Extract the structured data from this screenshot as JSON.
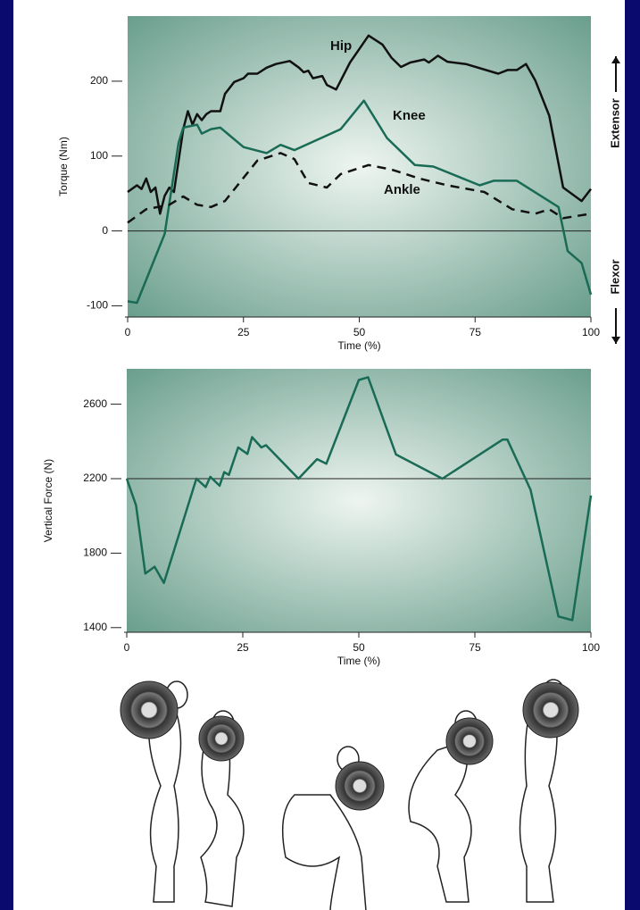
{
  "chart_data": [
    {
      "type": "line",
      "y_label": "Torque (Nm)",
      "x_label": "Time (%)",
      "xlim": [
        0,
        100
      ],
      "xticks": [
        0,
        25,
        50,
        75,
        100
      ],
      "ylim": [
        -115,
        287
      ],
      "yticks": [
        -100,
        0,
        100,
        200
      ],
      "annotations": [
        "Extensor",
        "Flexor"
      ],
      "series": [
        {
          "name": "Hip",
          "color": "#111111",
          "dashed": false,
          "x": [
            0,
            2,
            3,
            4,
            5,
            6,
            7,
            8,
            9,
            10,
            12,
            13,
            14,
            15,
            16,
            17,
            18,
            20,
            21,
            23,
            25,
            26,
            28,
            30,
            32,
            35,
            37,
            38,
            39,
            40,
            42,
            43,
            45,
            48,
            50,
            52,
            55,
            57,
            59,
            61,
            64,
            65,
            67,
            69,
            73,
            80,
            82,
            84,
            86,
            88,
            91,
            94,
            98,
            100
          ],
          "values": [
            52,
            61,
            56,
            70,
            52,
            58,
            23,
            47,
            58,
            52,
            136,
            160,
            142,
            156,
            148,
            156,
            160,
            160,
            183,
            199,
            204,
            210,
            210,
            218,
            223,
            227,
            218,
            212,
            214,
            204,
            207,
            195,
            189,
            225,
            243,
            261,
            249,
            231,
            219,
            225,
            229,
            225,
            234,
            226,
            223,
            210,
            215,
            215,
            223,
            201,
            154,
            58,
            40,
            56
          ]
        },
        {
          "name": "Knee",
          "color": "#1a6b55",
          "dashed": false,
          "x": [
            0,
            2,
            8,
            11,
            12,
            15,
            16,
            18,
            20,
            25,
            30,
            33,
            36,
            46,
            51,
            56,
            62,
            66,
            76,
            79,
            84,
            93,
            95,
            98,
            100
          ],
          "values": [
            -94,
            -96,
            -4,
            118,
            138,
            142,
            130,
            136,
            138,
            112,
            104,
            115,
            108,
            136,
            174,
            124,
            88,
            86,
            61,
            67,
            67,
            32,
            -27,
            -43,
            -85
          ]
        },
        {
          "name": "Ankle",
          "color": "#111111",
          "dashed": true,
          "x": [
            0,
            4,
            9,
            12,
            15,
            18,
            21,
            28,
            33,
            36,
            39,
            43,
            46,
            52,
            57,
            63,
            69,
            77,
            83,
            88,
            91,
            94,
            100
          ],
          "values": [
            11,
            29,
            35,
            46,
            35,
            32,
            40,
            94,
            104,
            96,
            64,
            58,
            76,
            88,
            82,
            70,
            61,
            52,
            29,
            23,
            29,
            17,
            23
          ]
        }
      ]
    },
    {
      "type": "line",
      "y_label": "Vertical Force (N)",
      "x_label": "Time (%)",
      "xlim": [
        0,
        100
      ],
      "xticks": [
        0,
        25,
        50,
        75,
        100
      ],
      "ylim": [
        1375,
        2790
      ],
      "yticks": [
        1400,
        1800,
        2200,
        2600
      ],
      "reference_line": 2200,
      "series": [
        {
          "color": "#1a6b55",
          "dashed": false,
          "x": [
            0,
            2,
            4,
            6,
            8,
            15,
            17,
            18,
            20,
            21,
            22,
            24,
            26,
            27,
            29,
            30,
            37,
            41,
            43,
            50,
            52,
            58,
            68,
            81,
            82,
            87,
            93,
            96,
            100
          ],
          "values": [
            2200,
            2057,
            1690,
            1727,
            1640,
            2200,
            2155,
            2210,
            2162,
            2235,
            2220,
            2368,
            2333,
            2423,
            2368,
            2380,
            2200,
            2305,
            2280,
            2730,
            2745,
            2330,
            2200,
            2410,
            2410,
            2140,
            1460,
            1440,
            2110
          ]
        }
      ]
    }
  ]
}
